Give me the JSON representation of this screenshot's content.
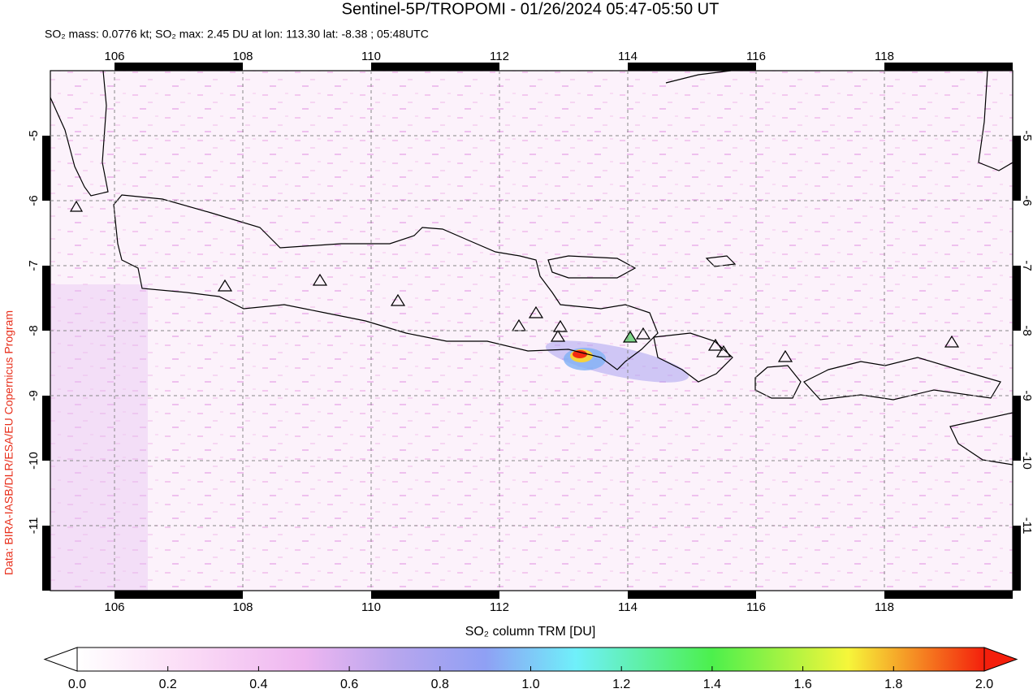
{
  "title": "Sentinel-5P/TROPOMI - 01/26/2024 05:47-05:50 UT",
  "subtitle": "SO₂ mass: 0.0776 kt; SO₂ max: 2.45 DU at lon: 113.30 lat: -8.38 ; 05:48UTC",
  "credit": "Data: BIRA-IASB/DLR/ESA/EU Copernicus Program",
  "map": {
    "xlim": [
      105,
      120
    ],
    "ylim": [
      -12,
      -4
    ],
    "xticks": [
      106,
      108,
      110,
      112,
      114,
      116,
      118
    ],
    "yticks": [
      -5,
      -6,
      -7,
      -8,
      -9,
      -10,
      -11
    ],
    "grid": true
  },
  "colorbar": {
    "label": "SO₂ column TRM [DU]",
    "lim": [
      0,
      2
    ],
    "ticks": [
      {
        "value": 0,
        "label": "0.0"
      },
      {
        "value": 0.2,
        "label": "0.2"
      },
      {
        "value": 0.4,
        "label": "0.4"
      },
      {
        "value": 0.6,
        "label": "0.6"
      },
      {
        "value": 0.8,
        "label": "0.8"
      },
      {
        "value": 1,
        "label": "1.0"
      },
      {
        "value": 1.2,
        "label": "1.2"
      },
      {
        "value": 1.4,
        "label": "1.4"
      },
      {
        "value": 1.6,
        "label": "1.6"
      },
      {
        "value": 1.8,
        "label": "1.8"
      },
      {
        "value": 2,
        "label": "2.0"
      }
    ]
  }
}
